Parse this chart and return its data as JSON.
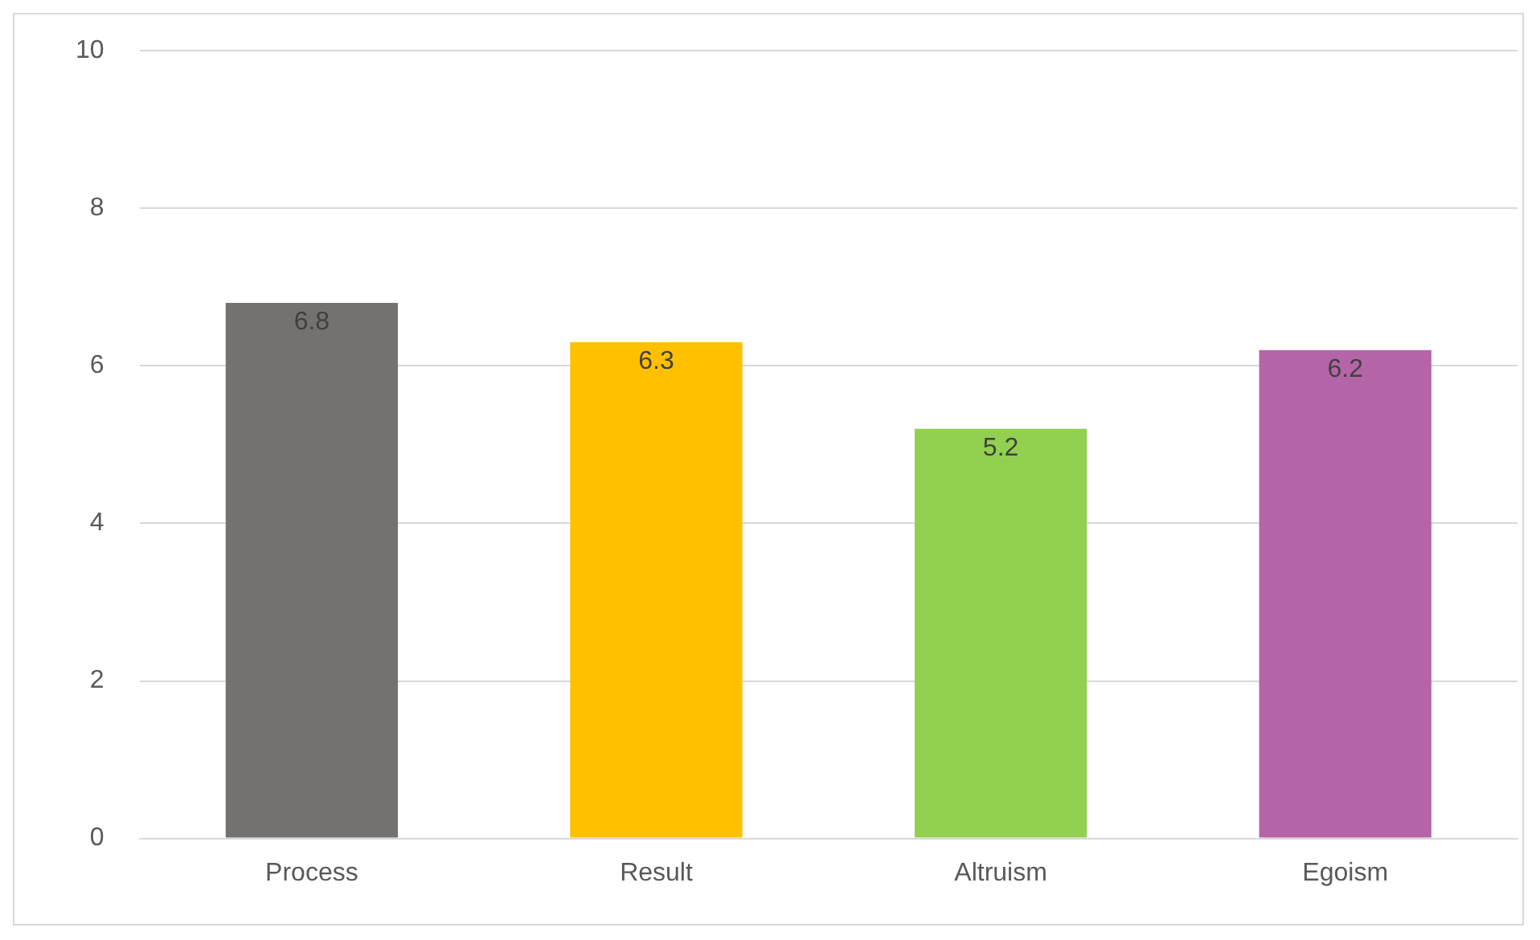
{
  "chart_data": {
    "type": "bar",
    "categories": [
      "Process",
      "Result",
      "Altruism",
      "Egoism"
    ],
    "values": [
      6.8,
      6.3,
      5.2,
      6.2
    ],
    "colors": [
      "#767171",
      "#ffc000",
      "#92d050",
      "#b565a7"
    ],
    "ylim": [
      0,
      10
    ],
    "yticks": [
      0,
      2,
      4,
      6,
      8,
      10
    ],
    "grid": "y",
    "data_labels": true,
    "legend": false
  }
}
